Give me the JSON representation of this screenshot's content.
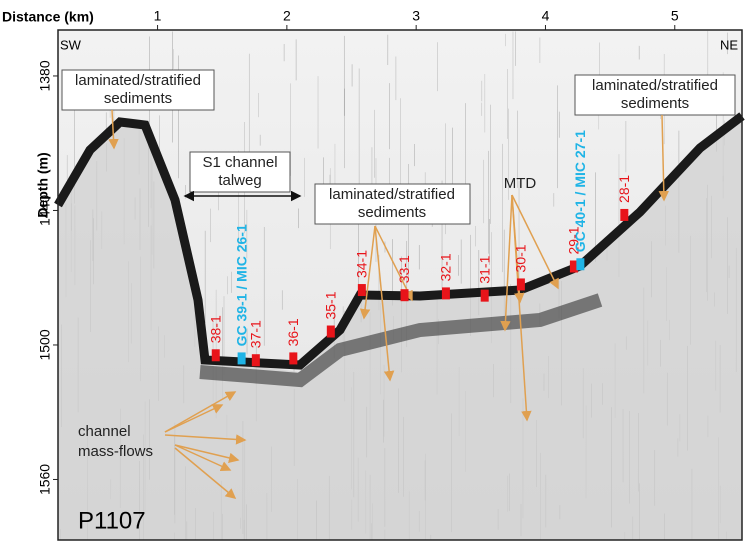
{
  "chart_data": {
    "type": "scatter",
    "x_label": "Distance (km)",
    "y_label": "Depth (m)",
    "xlim": [
      0.23,
      5.52
    ],
    "xticks": [
      1,
      2,
      3,
      4,
      5
    ],
    "ylim": [
      1587,
      1359.5
    ],
    "yticks": [
      1380,
      1440,
      1500,
      1560
    ],
    "points": [
      {
        "label": "38-1",
        "x": 1.45,
        "y": 1504.6,
        "color": "#e8141a"
      },
      {
        "label": "GC 39-1 / MIC 26-1",
        "x": 1.65,
        "y": 1506,
        "color": "#1fb4e6"
      },
      {
        "label": "37-1",
        "x": 1.76,
        "y": 1506.8,
        "color": "#e8141a"
      },
      {
        "label": "36-1",
        "x": 2.05,
        "y": 1506,
        "color": "#e8141a"
      },
      {
        "label": "35-1",
        "x": 2.34,
        "y": 1494,
        "color": "#e8141a"
      },
      {
        "label": "34-1",
        "x": 2.58,
        "y": 1475.5,
        "color": "#e8141a"
      },
      {
        "label": "33-1",
        "x": 2.91,
        "y": 1477.8,
        "color": "#e8141a"
      },
      {
        "label": "32-1",
        "x": 3.23,
        "y": 1477,
        "color": "#e8141a"
      },
      {
        "label": "31-1",
        "x": 3.53,
        "y": 1478,
        "color": "#e8141a"
      },
      {
        "label": "30-1",
        "x": 3.81,
        "y": 1473,
        "color": "#e8141a"
      },
      {
        "label": "29-1",
        "x": 4.22,
        "y": 1465,
        "color": "#e8141a"
      },
      {
        "label": "GC 40-1 / MIC 27-1",
        "x": 4.27,
        "y": 1464,
        "color": "#1fb4e6"
      },
      {
        "label": "28-1",
        "x": 4.61,
        "y": 1442,
        "color": "#e8141a"
      }
    ],
    "annotations": {
      "sw": "SW",
      "ne": "NE",
      "profile": "P1107",
      "sediments_left": [
        "laminated/stratified",
        "sediments"
      ],
      "talweg": [
        "S1 channel",
        "talweg"
      ],
      "sediments_mid": [
        "laminated/stratified",
        "sediments"
      ],
      "mtd": "MTD",
      "sediments_right": [
        "laminated/stratified",
        "sediments"
      ],
      "mass_flows": [
        "channel",
        "mass-flows"
      ]
    }
  }
}
